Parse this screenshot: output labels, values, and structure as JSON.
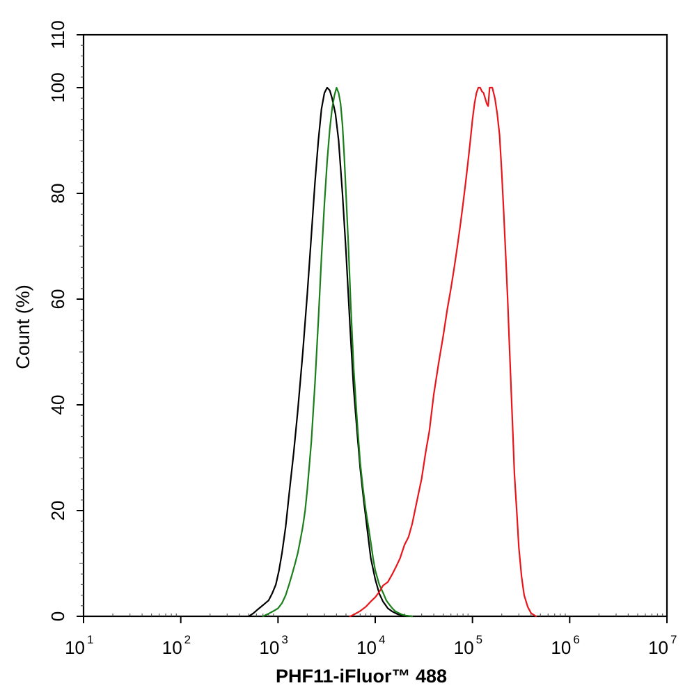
{
  "chart_data": {
    "type": "line",
    "xlabel": "PHF11-iFluor™ 488",
    "ylabel": "Count  (%)",
    "xscale": "log",
    "xlim": [
      10,
      10000000
    ],
    "ylim": [
      0,
      110
    ],
    "grid": false,
    "x_ticks": [
      {
        "value": 10,
        "base": "10",
        "exp": "1"
      },
      {
        "value": 100,
        "base": "10",
        "exp": "2"
      },
      {
        "value": 1000,
        "base": "10",
        "exp": "3"
      },
      {
        "value": 10000,
        "base": "10",
        "exp": "4"
      },
      {
        "value": 100000,
        "base": "10",
        "exp": "5"
      },
      {
        "value": 1000000,
        "base": "10",
        "exp": "6"
      },
      {
        "value": 10000000,
        "base": "10",
        "exp": "7"
      }
    ],
    "y_ticks": [
      0,
      20,
      40,
      60,
      80,
      100,
      110
    ],
    "series": [
      {
        "color": "#000000",
        "x": [
          500,
          560,
          620,
          700,
          800,
          870,
          950,
          1020,
          1100,
          1200,
          1300,
          1450,
          1600,
          1800,
          2000,
          2200,
          2400,
          2600,
          2800,
          3000,
          3200,
          3400,
          3600,
          3900,
          4200,
          4600,
          5000,
          5500,
          6000,
          6500,
          7000,
          7600,
          8200,
          9000,
          10000,
          11000,
          12000,
          13500,
          15000,
          17000,
          19000,
          21000,
          24000
        ],
        "y": [
          0,
          0.6,
          1.3,
          2.1,
          3,
          4.3,
          6,
          8.5,
          12,
          17,
          23,
          31,
          39,
          50,
          61,
          72,
          82,
          90,
          96,
          99,
          100,
          99.5,
          98,
          95,
          90,
          80,
          69,
          55,
          43,
          35,
          28,
          22,
          17,
          11,
          7,
          4.3,
          2.8,
          1.5,
          0.9,
          0.4,
          0.2,
          0.1,
          0
        ]
      },
      {
        "color": "#1a7f1a",
        "x": [
          700,
          800,
          900,
          1000,
          1100,
          1200,
          1300,
          1400,
          1500,
          1600,
          1700,
          1800,
          1900,
          2000,
          2200,
          2400,
          2600,
          2800,
          3000,
          3200,
          3400,
          3600,
          3800,
          4000,
          4200,
          4400,
          4600,
          4800,
          5000,
          5300,
          5600,
          6000,
          6500,
          7000,
          7500,
          8000,
          8500,
          9000,
          9500,
          10000,
          11000,
          12000,
          13000,
          14000,
          15000,
          16000,
          17500,
          19000,
          21000,
          24000
        ],
        "y": [
          0,
          0.5,
          1,
          1.5,
          2.5,
          4,
          6,
          8,
          10,
          12,
          14.5,
          17,
          20,
          24,
          33,
          44,
          56,
          68,
          78,
          86,
          92,
          96,
          98.5,
          100,
          99,
          97,
          93,
          87,
          80,
          70,
          59,
          47,
          37,
          29,
          24,
          20,
          17,
          14,
          11,
          8.7,
          6,
          4.5,
          3,
          2.2,
          1.5,
          1,
          0.6,
          0.3,
          0.1,
          0
        ]
      },
      {
        "color": "#e8161b",
        "x": [
          5500,
          6000,
          7000,
          8000,
          9000,
          10000,
          11000,
          12000,
          13500,
          15000,
          16500,
          18000,
          20000,
          22000,
          24000,
          27000,
          30000,
          33000,
          36000,
          40000,
          45000,
          50000,
          55000,
          60000,
          65000,
          70000,
          75000,
          80000,
          85000,
          90000,
          95000,
          100000,
          105000,
          110000,
          115000,
          120000,
          125000,
          130000,
          135000,
          140000,
          145000,
          150000,
          160000,
          170000,
          180000,
          190000,
          200000,
          210000,
          220000,
          230000,
          240000,
          250000,
          260000,
          270000,
          285000,
          300000,
          320000,
          340000,
          370000,
          400000,
          450000
        ],
        "y": [
          0,
          0.3,
          1,
          1.8,
          2.8,
          3.6,
          4.6,
          5.8,
          6.5,
          8,
          9.5,
          11,
          13.5,
          15,
          17.5,
          22,
          26,
          31,
          35,
          42,
          48,
          53,
          58,
          62,
          66,
          70,
          74,
          78,
          82,
          86,
          90,
          94,
          97,
          99,
          100,
          100,
          99.3,
          99,
          98,
          97,
          96.5,
          100,
          100,
          98,
          95,
          91,
          84,
          76,
          68,
          60,
          51,
          43,
          35,
          27,
          20,
          13,
          7.5,
          4,
          1.8,
          0.6,
          0
        ]
      }
    ]
  }
}
